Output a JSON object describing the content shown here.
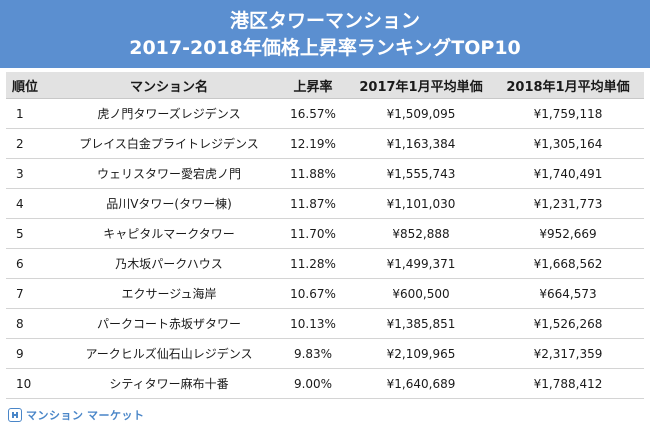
{
  "title": {
    "line1": "港区タワーマンション",
    "line2": "2017-2018年価格上昇率ランキングTOP10"
  },
  "table": {
    "headers": [
      "順位",
      "マンション名",
      "上昇率",
      "2017年1月平均単価",
      "2018年1月平均単価"
    ],
    "rows": [
      [
        "1",
        "虎ノ門タワーズレジデンス",
        "16.57%",
        "¥1,509,095",
        "¥1,759,118"
      ],
      [
        "2",
        "プレイス白金プライトレジデンス",
        "12.19%",
        "¥1,163,384",
        "¥1,305,164"
      ],
      [
        "3",
        "ウェリスタワー愛宕虎ノ門",
        "11.88%",
        "¥1,555,743",
        "¥1,740,491"
      ],
      [
        "4",
        "品川Vタワー(タワー棟)",
        "11.87%",
        "¥1,101,030",
        "¥1,231,773"
      ],
      [
        "5",
        "キャピタルマークタワー",
        "11.70%",
        "¥852,888",
        "¥952,669"
      ],
      [
        "6",
        "乃木坂パークハウス",
        "11.28%",
        "¥1,499,371",
        "¥1,668,562"
      ],
      [
        "7",
        "エクサージュ海岸",
        "10.67%",
        "¥600,500",
        "¥664,573"
      ],
      [
        "8",
        "パークコート赤坂ザタワー",
        "10.13%",
        "¥1,385,851",
        "¥1,526,268"
      ],
      [
        "9",
        "アークヒルズ仙石山レジデンス",
        "9.83%",
        "¥2,109,965",
        "¥2,317,359"
      ],
      [
        "10",
        "シティタワー麻布十番",
        "9.00%",
        "¥1,640,689",
        "¥1,788,412"
      ]
    ]
  },
  "footer": {
    "logo_text": "マンション マーケット",
    "logo_icon": "building-icon"
  },
  "colors": {
    "banner": "#5b8fd0",
    "header_bg": "#e2e2e2",
    "logo": "#4a86c8"
  }
}
